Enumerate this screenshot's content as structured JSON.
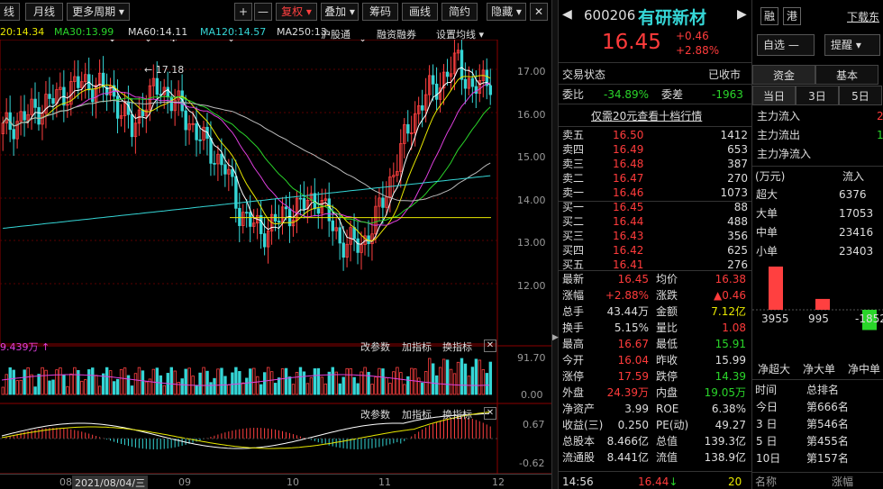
{
  "toolbar": {
    "left": [
      "线",
      "月线",
      "更多周期 ▾"
    ],
    "plus": "+",
    "minus": "—",
    "fq": "复权 ▾",
    "add": "叠加 ▾",
    "chip": "筹码",
    "draw": "画线",
    "simple": "简约",
    "hide": "隐藏 ▾"
  },
  "ma_legend": [
    {
      "text": "20:14.34",
      "color": "#e8e800"
    },
    {
      "text": "MA30:13.99",
      "color": "#2ad52a"
    },
    {
      "text": "MA60:14.11",
      "color": "#dddddd"
    },
    {
      "text": "MA120:14.57",
      "color": "#35d6d6"
    },
    {
      "text": "MA250:13.",
      "color": "#dddddd"
    }
  ],
  "chart_tabs": [
    "沪股通",
    "融资融券",
    "设置均线 ▾"
  ],
  "price_axis": [
    "17.00",
    "16.00",
    "15.00",
    "14.00",
    "13.00",
    "12.00"
  ],
  "high_label": "17.18",
  "vol_legend": "9.439万 ↑",
  "panel_btns": [
    "改参数",
    "加指标",
    "换指标"
  ],
  "vol_axis": [
    "91.70",
    "0.00"
  ],
  "macd_axis": [
    "0.67",
    "-0.62"
  ],
  "date_axis": {
    "cursor": "2021/08/04/三",
    "months": [
      "08",
      "09",
      "10",
      "11",
      "12"
    ]
  },
  "stock": {
    "code": "600206",
    "name": "有研新材",
    "price": "16.45",
    "chg": "+0.46",
    "pct": "+2.88%",
    "watch": "自选",
    "watch_sym": "—",
    "alert": "提醒",
    "tag1": "融",
    "tag2": "港",
    "download": "下载东"
  },
  "status": {
    "label": "交易状态",
    "value": "已收市"
  },
  "wb": {
    "label": "委比",
    "value": "-34.89%",
    "label2": "委差",
    "value2": "-1963"
  },
  "promo": "仅需20元查看十档行情",
  "asks": [
    {
      "n": "卖五",
      "p": "16.50",
      "v": "1412"
    },
    {
      "n": "卖四",
      "p": "16.49",
      "v": "653"
    },
    {
      "n": "卖三",
      "p": "16.48",
      "v": "387"
    },
    {
      "n": "卖二",
      "p": "16.47",
      "v": "270"
    },
    {
      "n": "卖一",
      "p": "16.46",
      "v": "1073"
    }
  ],
  "bids": [
    {
      "n": "买一",
      "p": "16.45",
      "v": "88"
    },
    {
      "n": "买二",
      "p": "16.44",
      "v": "488"
    },
    {
      "n": "买三",
      "p": "16.43",
      "v": "356"
    },
    {
      "n": "买四",
      "p": "16.42",
      "v": "625"
    },
    {
      "n": "买五",
      "p": "16.41",
      "v": "276"
    }
  ],
  "stats": [
    {
      "l": "最新",
      "v": "16.45",
      "vc": "r",
      "l2": "均价",
      "v2": "16.38",
      "v2c": "r"
    },
    {
      "l": "涨幅",
      "v": "+2.88%",
      "vc": "r",
      "l2": "涨跌",
      "v2": "▲0.46",
      "v2c": "r"
    },
    {
      "l": "总手",
      "v": "43.44万",
      "vc": "w",
      "l2": "金额",
      "v2": "7.12亿",
      "v2c": "y"
    },
    {
      "l": "换手",
      "v": "5.15%",
      "vc": "w",
      "l2": "量比",
      "v2": "1.08",
      "v2c": "r"
    },
    {
      "l": "最高",
      "v": "16.67",
      "vc": "r",
      "l2": "最低",
      "v2": "15.91",
      "v2c": "g"
    },
    {
      "l": "今开",
      "v": "16.04",
      "vc": "r",
      "l2": "昨收",
      "v2": "15.99",
      "v2c": "w"
    },
    {
      "l": "涨停",
      "v": "17.59",
      "vc": "r",
      "l2": "跌停",
      "v2": "14.39",
      "v2c": "g"
    },
    {
      "l": "外盘",
      "v": "24.39万",
      "vc": "r",
      "l2": "内盘",
      "v2": "19.05万",
      "v2c": "g"
    },
    {
      "l": "净资产",
      "v": "3.99",
      "vc": "w",
      "l2": "ROE",
      "v2": "6.38%",
      "v2c": "w"
    },
    {
      "l": "收益(三)",
      "v": "0.250",
      "vc": "w",
      "l2": "PE(动)",
      "v2": "49.27",
      "v2c": "w"
    },
    {
      "l": "总股本",
      "v": "8.466亿",
      "vc": "w",
      "l2": "总值",
      "v2": "139.3亿",
      "v2c": "w"
    },
    {
      "l": "流通股",
      "v": "8.441亿",
      "vc": "w",
      "l2": "流值",
      "v2": "138.9亿",
      "v2c": "w"
    }
  ],
  "tick": {
    "time": "14:56",
    "price": "16.44",
    "vol": "20"
  },
  "fund": {
    "tabs": [
      "资金",
      "基本"
    ],
    "sub": [
      "当日",
      "3日",
      "5日"
    ],
    "flows": [
      {
        "l": "主力流入",
        "v": "2"
      },
      {
        "l": "主力流出",
        "v": "1"
      },
      {
        "l": "主力净流入",
        "v": ""
      }
    ],
    "hdr": {
      "unit": "(万元)",
      "in": "流入"
    },
    "rows": [
      {
        "l": "超大",
        "v": "6376"
      },
      {
        "l": "大单",
        "v": "17053"
      },
      {
        "l": "中单",
        "v": "23416"
      },
      {
        "l": "小单",
        "v": "23403"
      }
    ],
    "bars": [
      "3955",
      "995",
      "-1852"
    ],
    "net": [
      "净超大",
      "净大单",
      "净中单"
    ]
  },
  "rank": {
    "hdr": [
      "时间",
      "总排名"
    ],
    "rows": [
      {
        "t": "今日",
        "v": "第666名"
      },
      {
        "t": "3 日",
        "v": "第546名"
      },
      {
        "t": "5 日",
        "v": "第455名"
      },
      {
        "t": "10日",
        "v": "第157名"
      }
    ],
    "foot": [
      "名称",
      "涨幅"
    ]
  }
}
